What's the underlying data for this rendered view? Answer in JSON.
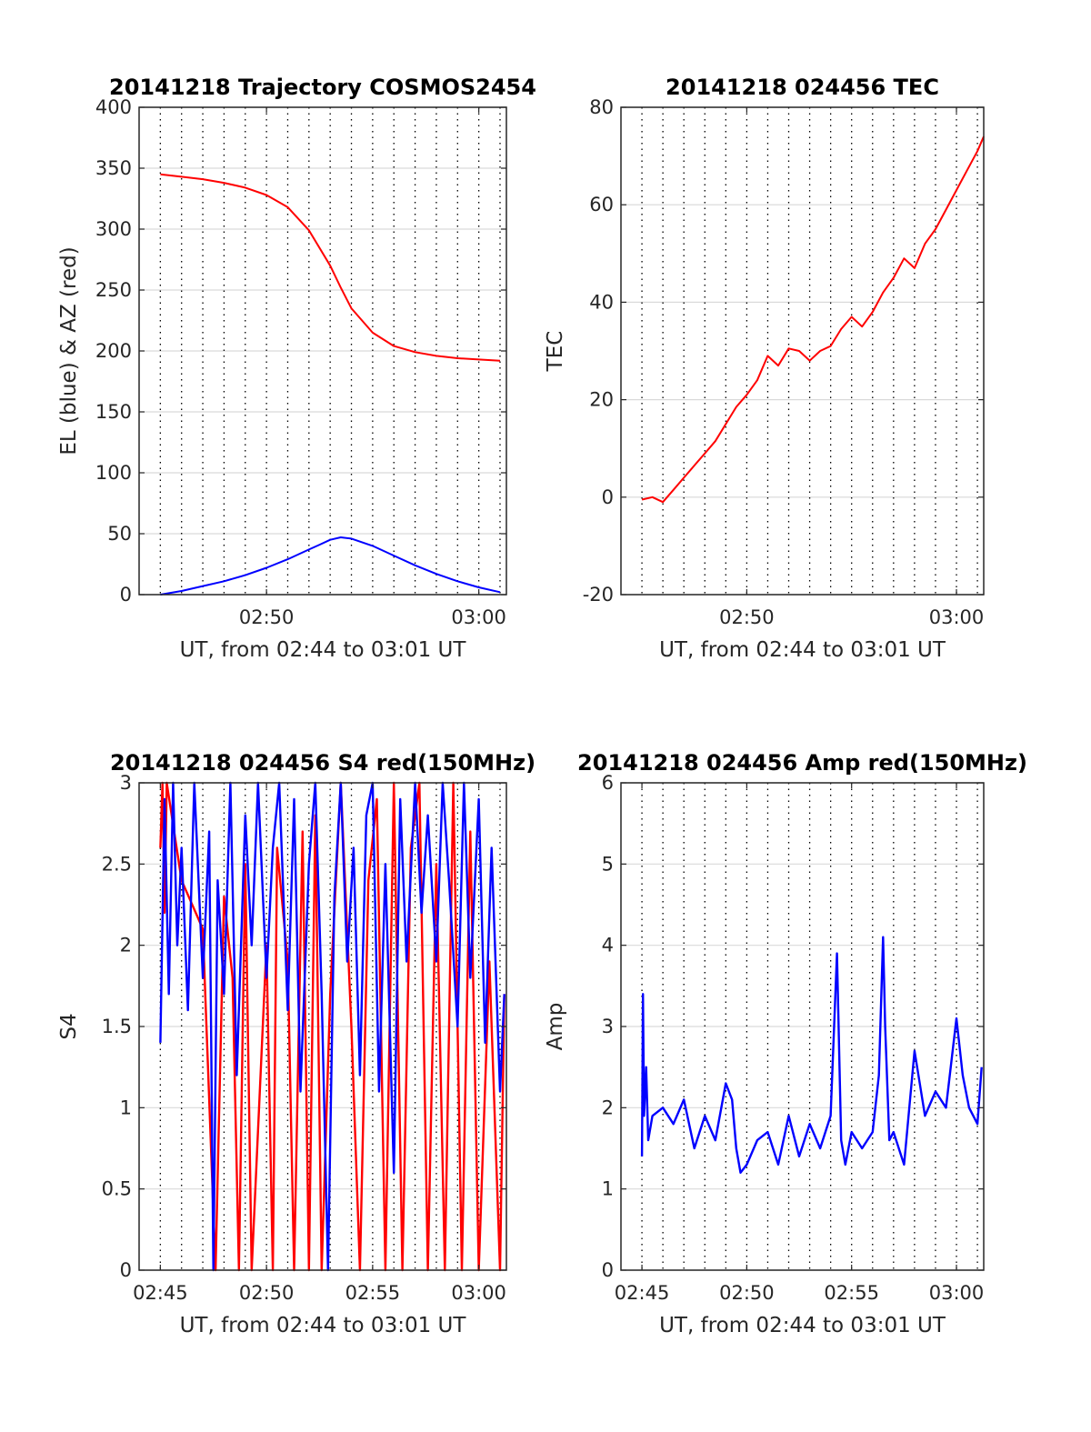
{
  "colors": {
    "red": "#ff0000",
    "blue": "#0000ff",
    "grid": "#d9d9d9",
    "minor_grid": "#000000"
  },
  "chart_data": [
    {
      "id": "trajectory",
      "type": "line",
      "title": "20141218 Trajectory COSMOS2454",
      "xlabel": "UT, from 02:44 to 03:01 UT",
      "ylabel": "EL (blue) & AZ (red)",
      "xlim": [
        44.0,
        61.3
      ],
      "ylim": [
        0,
        400
      ],
      "xticks": [
        {
          "v": 50,
          "label": "02:50"
        },
        {
          "v": 60,
          "label": "03:00"
        }
      ],
      "yticks": [
        {
          "v": 0,
          "label": "0"
        },
        {
          "v": 50,
          "label": "50"
        },
        {
          "v": 100,
          "label": "100"
        },
        {
          "v": 150,
          "label": "150"
        },
        {
          "v": 200,
          "label": "200"
        },
        {
          "v": 250,
          "label": "250"
        },
        {
          "v": 300,
          "label": "300"
        },
        {
          "v": 350,
          "label": "350"
        },
        {
          "v": 400,
          "label": "400"
        }
      ],
      "minor_x": [
        45,
        46,
        47,
        48,
        49,
        51,
        52,
        53,
        54,
        55,
        56,
        57,
        58,
        59,
        61
      ],
      "grid": true,
      "series": [
        {
          "color": "red",
          "x": [
            45.0,
            46.0,
            47.0,
            48.0,
            49.0,
            50.0,
            51.0,
            52.0,
            53.0,
            53.5,
            54.0,
            55.0,
            56.0,
            57.0,
            58.0,
            59.0,
            60.0,
            61.0
          ],
          "y": [
            345,
            343,
            341,
            338,
            334,
            328,
            318,
            299,
            270,
            252,
            235,
            215,
            204,
            199,
            196,
            194,
            193,
            192
          ]
        },
        {
          "color": "blue",
          "x": [
            45.0,
            46.0,
            47.0,
            48.0,
            49.0,
            50.0,
            51.0,
            52.0,
            52.5,
            53.0,
            53.5,
            54.0,
            55.0,
            56.0,
            57.0,
            58.0,
            59.0,
            60.0,
            61.0
          ],
          "y": [
            0,
            3,
            7,
            11,
            16,
            22,
            29,
            37,
            41,
            45,
            47,
            46,
            40,
            32,
            24,
            17,
            11,
            6,
            2
          ]
        }
      ]
    },
    {
      "id": "tec",
      "type": "line",
      "title": "20141218 024456 TEC",
      "xlabel": "UT, from 02:44 to 03:01 UT",
      "ylabel": "TEC",
      "xlim": [
        44.0,
        61.3
      ],
      "ylim": [
        -20,
        80
      ],
      "xticks": [
        {
          "v": 50,
          "label": "02:50"
        },
        {
          "v": 60,
          "label": "03:00"
        }
      ],
      "yticks": [
        {
          "v": -20,
          "label": "-20"
        },
        {
          "v": 0,
          "label": "0"
        },
        {
          "v": 20,
          "label": "20"
        },
        {
          "v": 40,
          "label": "40"
        },
        {
          "v": 60,
          "label": "60"
        },
        {
          "v": 80,
          "label": "80"
        }
      ],
      "minor_x": [
        45,
        46,
        47,
        48,
        49,
        51,
        52,
        53,
        54,
        55,
        56,
        57,
        58,
        59,
        61
      ],
      "grid": true,
      "series": [
        {
          "color": "red",
          "x": [
            45.0,
            45.5,
            46.0,
            46.5,
            47.0,
            47.5,
            48.0,
            48.5,
            49.0,
            49.5,
            50.0,
            50.5,
            51.0,
            51.5,
            52.0,
            52.5,
            53.0,
            53.5,
            54.0,
            54.5,
            55.0,
            55.5,
            56.0,
            56.5,
            57.0,
            57.5,
            58.0,
            58.5,
            59.0,
            59.5,
            60.0,
            60.5,
            61.0,
            61.3
          ],
          "y": [
            -0.5,
            0,
            -1,
            1.5,
            4,
            6.5,
            9,
            11.5,
            15,
            18.5,
            21,
            24,
            29,
            27,
            30.5,
            30,
            28,
            30,
            31,
            34.5,
            37,
            35,
            38,
            42,
            45,
            49,
            47,
            52,
            55,
            59,
            63,
            67,
            71,
            74
          ]
        }
      ]
    },
    {
      "id": "s4",
      "type": "line",
      "title": "20141218 024456 S4 red(150MHz)",
      "xlabel": "UT, from 02:44 to 03:01 UT",
      "ylabel": "S4",
      "xlim": [
        44.0,
        61.3
      ],
      "ylim": [
        0,
        3
      ],
      "xticks": [
        {
          "v": 45,
          "label": "02:45"
        },
        {
          "v": 50,
          "label": "02:50"
        },
        {
          "v": 55,
          "label": "02:55"
        },
        {
          "v": 60,
          "label": "03:00"
        }
      ],
      "yticks": [
        {
          "v": 0,
          "label": "0"
        },
        {
          "v": 0.5,
          "label": "0.5"
        },
        {
          "v": 1,
          "label": "1"
        },
        {
          "v": 1.5,
          "label": "1.5"
        },
        {
          "v": 2,
          "label": "2"
        },
        {
          "v": 2.5,
          "label": "2.5"
        },
        {
          "v": 3,
          "label": "3"
        }
      ],
      "minor_x": [
        46,
        47,
        48,
        49,
        51,
        52,
        53,
        54,
        56,
        57,
        58,
        59,
        61
      ],
      "grid": true,
      "series": [
        {
          "color": "red",
          "x": [
            45.0,
            45.1,
            45.2,
            45.3,
            46.0,
            47.0,
            47.6,
            48.0,
            48.4,
            48.7,
            49.0,
            49.3,
            50.0,
            50.3,
            50.5,
            51.0,
            51.3,
            51.7,
            52.0,
            52.3,
            52.6,
            53.0,
            53.5,
            54.0,
            54.4,
            54.8,
            55.2,
            55.6,
            56.0,
            56.4,
            56.8,
            57.2,
            57.6,
            58.0,
            58.4,
            58.8,
            59.2,
            59.6,
            60.0,
            60.5,
            61.0,
            61.2
          ],
          "y": [
            2.6,
            3.0,
            2.2,
            3.0,
            2.4,
            2.1,
            0.0,
            2.3,
            1.8,
            0.0,
            2.5,
            0.0,
            2.0,
            0.0,
            2.6,
            1.9,
            0.0,
            2.7,
            0.0,
            2.8,
            0.0,
            1.7,
            3.0,
            1.5,
            0.0,
            2.4,
            2.9,
            0.0,
            3.0,
            0.0,
            2.6,
            3.0,
            0.0,
            2.5,
            0.0,
            3.0,
            0.0,
            2.7,
            0.0,
            1.9,
            0.0,
            1.7
          ]
        },
        {
          "color": "blue",
          "x": [
            45.0,
            45.2,
            45.4,
            45.6,
            45.8,
            46.0,
            46.3,
            46.6,
            47.0,
            47.3,
            47.5,
            47.7,
            48.0,
            48.3,
            48.6,
            49.0,
            49.3,
            49.6,
            50.0,
            50.3,
            50.6,
            51.0,
            51.3,
            51.6,
            52.0,
            52.3,
            52.6,
            52.9,
            53.2,
            53.5,
            53.8,
            54.1,
            54.4,
            54.7,
            55.0,
            55.3,
            55.6,
            56.0,
            56.3,
            56.6,
            57.0,
            57.3,
            57.6,
            58.0,
            58.3,
            58.6,
            59.0,
            59.3,
            59.6,
            60.0,
            60.3,
            60.6,
            61.0,
            61.2
          ],
          "y": [
            1.4,
            2.9,
            1.7,
            3.0,
            2.0,
            2.6,
            1.6,
            3.0,
            1.8,
            2.7,
            0.0,
            2.4,
            1.7,
            3.0,
            1.2,
            2.8,
            2.0,
            3.0,
            1.8,
            2.6,
            3.0,
            1.6,
            2.9,
            1.1,
            2.5,
            3.0,
            1.7,
            0.0,
            2.3,
            3.0,
            1.9,
            2.6,
            1.2,
            2.8,
            3.0,
            1.1,
            2.5,
            0.6,
            2.9,
            1.9,
            3.0,
            2.2,
            2.8,
            1.9,
            3.0,
            2.4,
            1.5,
            3.0,
            1.8,
            2.9,
            1.4,
            2.6,
            1.1,
            1.7
          ]
        }
      ]
    },
    {
      "id": "amp",
      "type": "line",
      "title": "20141218 024456 Amp red(150MHz)",
      "xlabel": "UT, from 02:44 to 03:01 UT",
      "ylabel": "Amp",
      "xlim": [
        44.0,
        61.3
      ],
      "ylim": [
        0,
        6
      ],
      "xticks": [
        {
          "v": 45,
          "label": "02:45"
        },
        {
          "v": 50,
          "label": "02:50"
        },
        {
          "v": 55,
          "label": "02:55"
        },
        {
          "v": 60,
          "label": "03:00"
        }
      ],
      "yticks": [
        {
          "v": 0,
          "label": "0"
        },
        {
          "v": 1,
          "label": "1"
        },
        {
          "v": 2,
          "label": "2"
        },
        {
          "v": 3,
          "label": "3"
        },
        {
          "v": 4,
          "label": "4"
        },
        {
          "v": 5,
          "label": "5"
        },
        {
          "v": 6,
          "label": "6"
        }
      ],
      "minor_x": [
        46,
        47,
        48,
        49,
        51,
        52,
        53,
        54,
        56,
        57,
        58,
        59,
        61
      ],
      "grid": true,
      "series": [
        {
          "color": "blue",
          "x": [
            45.0,
            45.05,
            45.1,
            45.2,
            45.3,
            45.5,
            46.0,
            46.5,
            47.0,
            47.5,
            48.0,
            48.5,
            49.0,
            49.3,
            49.5,
            49.7,
            50.0,
            50.5,
            51.0,
            51.5,
            52.0,
            52.5,
            53.0,
            53.5,
            54.0,
            54.3,
            54.5,
            54.7,
            55.0,
            55.5,
            56.0,
            56.3,
            56.5,
            56.6,
            56.8,
            57.0,
            57.5,
            58.0,
            58.5,
            59.0,
            59.5,
            60.0,
            60.3,
            60.6,
            61.0,
            61.2
          ],
          "y": [
            1.4,
            3.4,
            1.9,
            2.5,
            1.6,
            1.9,
            2.0,
            1.8,
            2.1,
            1.5,
            1.9,
            1.6,
            2.3,
            2.1,
            1.5,
            1.2,
            1.3,
            1.6,
            1.7,
            1.3,
            1.9,
            1.4,
            1.8,
            1.5,
            1.9,
            3.9,
            1.6,
            1.3,
            1.7,
            1.5,
            1.7,
            2.4,
            4.1,
            3.0,
            1.6,
            1.7,
            1.3,
            2.7,
            1.9,
            2.2,
            2.0,
            3.1,
            2.4,
            2.0,
            1.8,
            2.5
          ]
        }
      ]
    }
  ]
}
